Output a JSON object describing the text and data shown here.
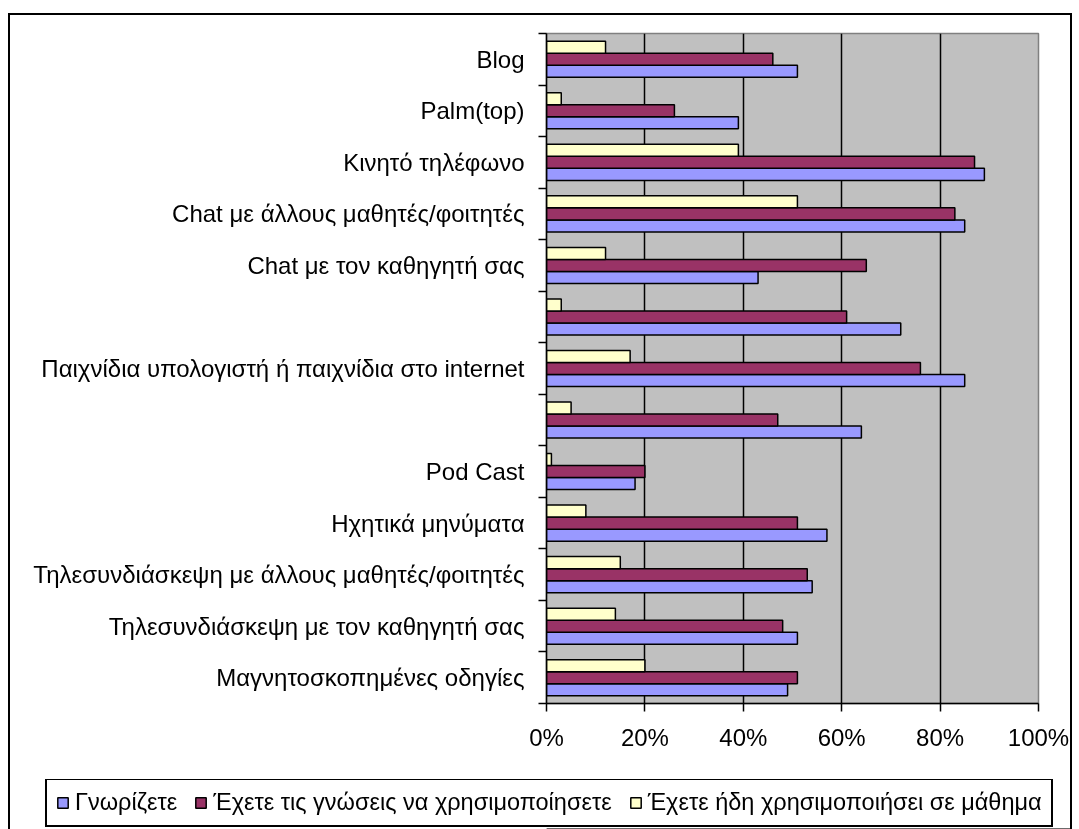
{
  "chart_data": {
    "type": "bar",
    "orientation": "horizontal",
    "categories": [
      "Blog",
      "Palm(top)",
      "Κινητό τηλέφωνο",
      "Chat με άλλους μαθητές/φοιτητές",
      "Chat με τον καθηγητή σας",
      null,
      "Παιχνίδια υπολογιστή ή παιχνίδια στο internet",
      null,
      "Pod Cast",
      "Ηχητικά μηνύματα",
      "Τηλεσυνδιάσκεψη με άλλους μαθητές/φοιτητές",
      "Τηλεσυνδιάσκεψη με τον καθηγητή σας",
      "Μαγνητοσκοπημένες οδηγίες"
    ],
    "series": [
      {
        "name": "Γνωρίζετε",
        "color": "#9999ff",
        "values": [
          51,
          39,
          89,
          85,
          43,
          72,
          85,
          64,
          18,
          57,
          54,
          51,
          49
        ]
      },
      {
        "name": "Έχετε τις γνώσεις να χρησιμοποίησετε",
        "color": "#993366",
        "values": [
          46,
          26,
          87,
          83,
          65,
          61,
          76,
          47,
          20,
          51,
          53,
          48,
          51
        ]
      },
      {
        "name": "Έχετε ήδη χρησιμοποιήσει σε μάθημα",
        "color": "#ffffcc",
        "values": [
          12,
          3,
          39,
          51,
          12,
          3,
          17,
          5,
          1,
          8,
          15,
          14,
          20
        ]
      }
    ],
    "xlim": [
      0,
      100
    ],
    "xticks": [
      {
        "value": 0,
        "label": "0%"
      },
      {
        "value": 20,
        "label": "20%"
      },
      {
        "value": 40,
        "label": "40%"
      },
      {
        "value": 60,
        "label": "60%"
      },
      {
        "value": 80,
        "label": "80%"
      },
      {
        "value": 100,
        "label": "100%"
      }
    ],
    "grid": "x",
    "legend": "bottom"
  }
}
